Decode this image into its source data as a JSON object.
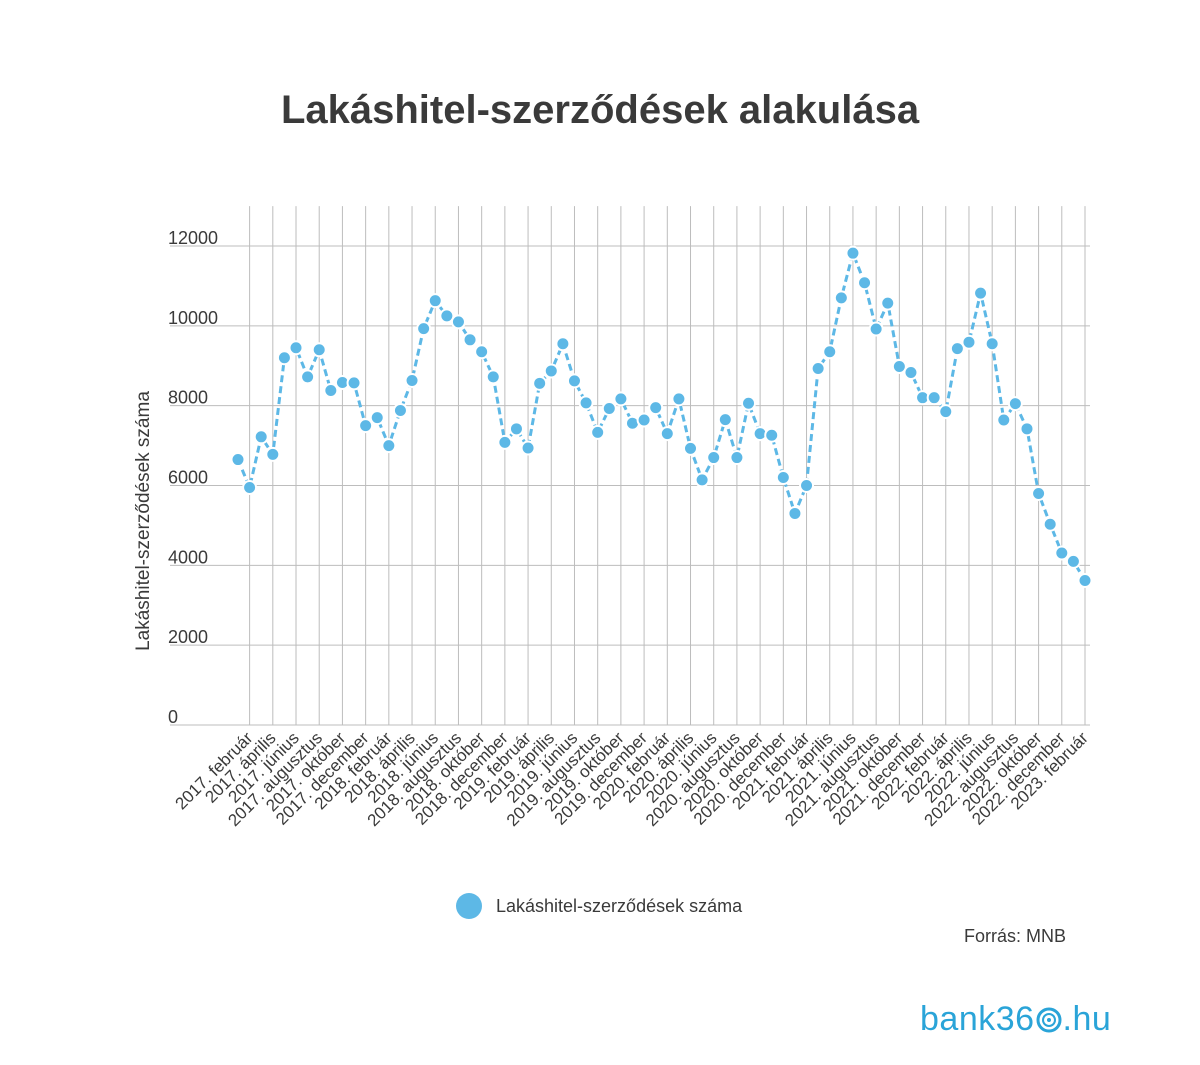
{
  "title": "Lakáshitel-szerződések alakulása",
  "legend_label": "Lakáshitel-szerződések száma",
  "source": "Forrás: MNB",
  "logo": {
    "pre": "bank36",
    "post": ".hu"
  },
  "colors": {
    "line": "#5db8e6",
    "grid": "#bdbdbd",
    "text": "#3a3a3a",
    "logo": "#2aa4d8"
  },
  "chart_data": {
    "type": "line",
    "title": "Lakáshitel-szerződések alakulása",
    "xlabel": "",
    "ylabel": "Lakáshitel-szerződések száma",
    "ylim": [
      0,
      13000
    ],
    "yticks": [
      0,
      2000,
      4000,
      6000,
      8000,
      10000,
      12000
    ],
    "grid": true,
    "legend_position": "bottom",
    "x": [
      "2017. január",
      "2017. február",
      "2017. március",
      "2017. április",
      "2017. május",
      "2017. június",
      "2017. július",
      "2017. augusztus",
      "2017. szeptember",
      "2017. október",
      "2017. november",
      "2017. december",
      "2018. január",
      "2018. február",
      "2018. március",
      "2018. április",
      "2018. május",
      "2018. június",
      "2018. július",
      "2018. augusztus",
      "2018. szeptember",
      "2018. október",
      "2018. november",
      "2018. december",
      "2019. január",
      "2019. február",
      "2019. március",
      "2019. április",
      "2019. május",
      "2019. június",
      "2019. július",
      "2019. augusztus",
      "2019. szeptember",
      "2019. október",
      "2019. november",
      "2019. december",
      "2020. január",
      "2020. február",
      "2020. március",
      "2020. április",
      "2020. május",
      "2020. június",
      "2020. július",
      "2020. augusztus",
      "2020. szeptember",
      "2020. október",
      "2020. november",
      "2020. december",
      "2021. január",
      "2021. február",
      "2021. március",
      "2021. április",
      "2021. május",
      "2021. június",
      "2021. július",
      "2021. augusztus",
      "2021. szeptember",
      "2021. október",
      "2021. november",
      "2021. december",
      "2022. január",
      "2022. február",
      "2022. március",
      "2022. április",
      "2022. május",
      "2022. június",
      "2022. július",
      "2022. augusztus",
      "2022. szeptember",
      "2022. október",
      "2022. november",
      "2022. december",
      "2023. január",
      "2023. február"
    ],
    "tick_labels": [
      "2017. február",
      "2017. április",
      "2017. június",
      "2017. augusztus",
      "2017. október",
      "2017. december",
      "2018. február",
      "2018. április",
      "2018. június",
      "2018. augusztus",
      "2018. október",
      "2018. december",
      "2019. február",
      "2019. április",
      "2019. június",
      "2019. augusztus",
      "2019. október",
      "2019. december",
      "2020. február",
      "2020. április",
      "2020. június",
      "2020. augusztus",
      "2020. október",
      "2020. december",
      "2021. február",
      "2021. április",
      "2021. június",
      "2021. augusztus",
      "2021. október",
      "2021. december",
      "2022. február",
      "2022. április",
      "2022. június",
      "2022. augusztus",
      "2022. október",
      "2022. december",
      "2023. február"
    ],
    "series": [
      {
        "name": "Lakáshitel-szerződések száma",
        "values": [
          6650,
          5950,
          7220,
          6780,
          9200,
          9450,
          8720,
          9400,
          8380,
          8580,
          8570,
          7500,
          7700,
          7000,
          7880,
          8630,
          9930,
          10630,
          10250,
          10100,
          9650,
          9350,
          8720,
          7080,
          7420,
          6940,
          8560,
          8870,
          9550,
          8620,
          8070,
          7330,
          7930,
          8170,
          7560,
          7640,
          7950,
          7300,
          8170,
          6930,
          6140,
          6700,
          7650,
          6700,
          8060,
          7300,
          7260,
          6200,
          5300,
          6000,
          8930,
          9350,
          10700,
          11820,
          11080,
          9920,
          10570,
          8980,
          8830,
          8200,
          8200,
          7850,
          9430,
          9590,
          10820,
          9550,
          7640,
          8050,
          7420,
          5800,
          5030,
          4310,
          4100,
          3620
        ]
      }
    ]
  }
}
